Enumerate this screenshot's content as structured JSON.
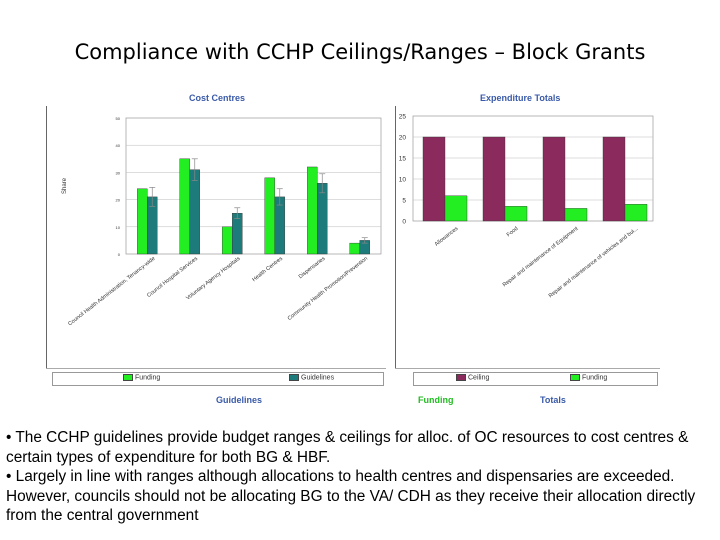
{
  "title": "Compliance with CCHP Ceilings/Ranges – Block Grants",
  "chart_data": [
    {
      "type": "bar",
      "title": "Cost Centres",
      "ylabel": "Share",
      "ylim": [
        0,
        50
      ],
      "yticks": [
        "0",
        "10",
        "20",
        "30",
        "40",
        "50"
      ],
      "categories": [
        "Council Health Administration, Tenancy-wide",
        "Council Hospital Services",
        "Voluntary Agency Hospitals",
        "Health Centres",
        "Dispensaries",
        "Community Health Promotion/Prevention"
      ],
      "series": [
        {
          "name": "Funding",
          "color": "#22ee22",
          "values": [
            24,
            35,
            10,
            28,
            32,
            4
          ]
        },
        {
          "name": "Guidelines",
          "color": "#1e7b7b",
          "values": [
            21,
            31,
            15,
            21,
            26,
            5
          ]
        }
      ],
      "errors": [
        3.5,
        4,
        2,
        3,
        3.5,
        1
      ]
    },
    {
      "type": "bar",
      "title": "Expenditure Totals",
      "ylim": [
        0,
        25
      ],
      "yticks": [
        "0",
        "5",
        "10",
        "15",
        "20",
        "25"
      ],
      "categories": [
        "Allowances",
        "Food",
        "Repair and maintenance of Equipment",
        "Repair and maintenance of vehicles and bui..."
      ],
      "series": [
        {
          "name": "Ceiling",
          "color": "#8b2a5c",
          "values": [
            20,
            20,
            20,
            20
          ]
        },
        {
          "name": "Funding",
          "color": "#22ee22",
          "values": [
            6,
            3.5,
            3,
            4
          ]
        }
      ]
    }
  ],
  "tabs": {
    "guidelines": "Guidelines",
    "funding": "Funding",
    "totals": "Totals"
  },
  "body": [
    "• The CCHP guidelines provide budget ranges & ceilings for alloc. of OC resources to cost centres & certain types of expenditure for both BG &  HBF.",
    "• Largely in line with ranges although allocations to health centres and dispensaries are exceeded.  However, councils should not be allocating BG to the VA/ CDH as they receive their allocation directly from the central government"
  ]
}
